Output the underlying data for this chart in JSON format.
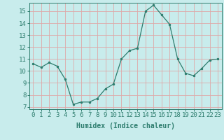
{
  "x": [
    0,
    1,
    2,
    3,
    4,
    5,
    6,
    7,
    8,
    9,
    10,
    11,
    12,
    13,
    14,
    15,
    16,
    17,
    18,
    19,
    20,
    21,
    22,
    23
  ],
  "y": [
    10.6,
    10.3,
    10.7,
    10.4,
    9.3,
    7.2,
    7.4,
    7.4,
    7.7,
    8.5,
    8.9,
    11.0,
    11.7,
    11.9,
    15.0,
    15.5,
    14.7,
    13.9,
    11.0,
    9.8,
    9.6,
    10.2,
    10.9,
    11.0
  ],
  "xlabel": "Humidex (Indice chaleur)",
  "ylim": [
    6.8,
    15.7
  ],
  "xlim": [
    -0.5,
    23.5
  ],
  "yticks": [
    7,
    8,
    9,
    10,
    11,
    12,
    13,
    14,
    15
  ],
  "xticks": [
    0,
    1,
    2,
    3,
    4,
    5,
    6,
    7,
    8,
    9,
    10,
    11,
    12,
    13,
    14,
    15,
    16,
    17,
    18,
    19,
    20,
    21,
    22,
    23
  ],
  "line_color": "#2e7d6e",
  "marker_color": "#2e7d6e",
  "bg_color": "#c8ecec",
  "grid_color": "#dea8a8",
  "text_color": "#2e7d6e",
  "xlabel_fontsize": 7,
  "tick_fontsize": 6.5
}
